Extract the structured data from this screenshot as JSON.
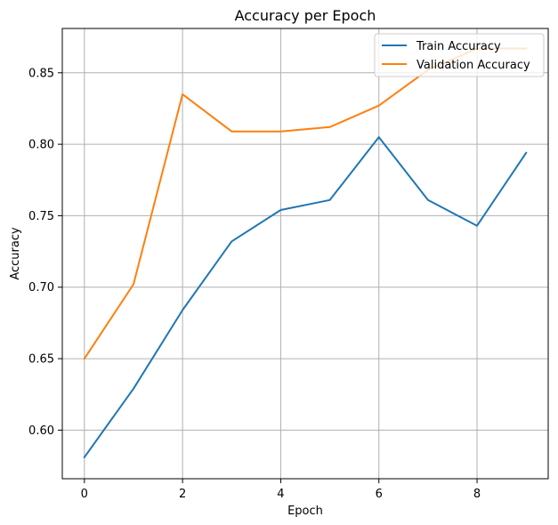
{
  "chart_data": {
    "type": "line",
    "title": "Accuracy per Epoch",
    "xlabel": "Epoch",
    "ylabel": "Accuracy",
    "xlim": [
      -0.45,
      9.45
    ],
    "ylim": [
      0.566,
      0.881
    ],
    "xticks": [
      0,
      2,
      4,
      6,
      8
    ],
    "yticks": [
      0.6,
      0.65,
      0.7,
      0.75,
      0.8,
      0.85
    ],
    "ytick_labels": [
      "0.60",
      "0.65",
      "0.70",
      "0.75",
      "0.80",
      "0.85"
    ],
    "grid": true,
    "legend_position": "top-right",
    "x": [
      0,
      1,
      2,
      3,
      4,
      5,
      6,
      7,
      8,
      9
    ],
    "series": [
      {
        "name": "Train Accuracy",
        "color": "#1f77b4",
        "values": [
          0.581,
          0.629,
          0.684,
          0.732,
          0.754,
          0.761,
          0.805,
          0.761,
          0.743,
          0.794
        ]
      },
      {
        "name": "Validation Accuracy",
        "color": "#ff7f0e",
        "values": [
          0.65,
          0.702,
          0.835,
          0.809,
          0.809,
          0.812,
          0.827,
          0.852,
          0.867,
          0.867
        ]
      }
    ]
  }
}
